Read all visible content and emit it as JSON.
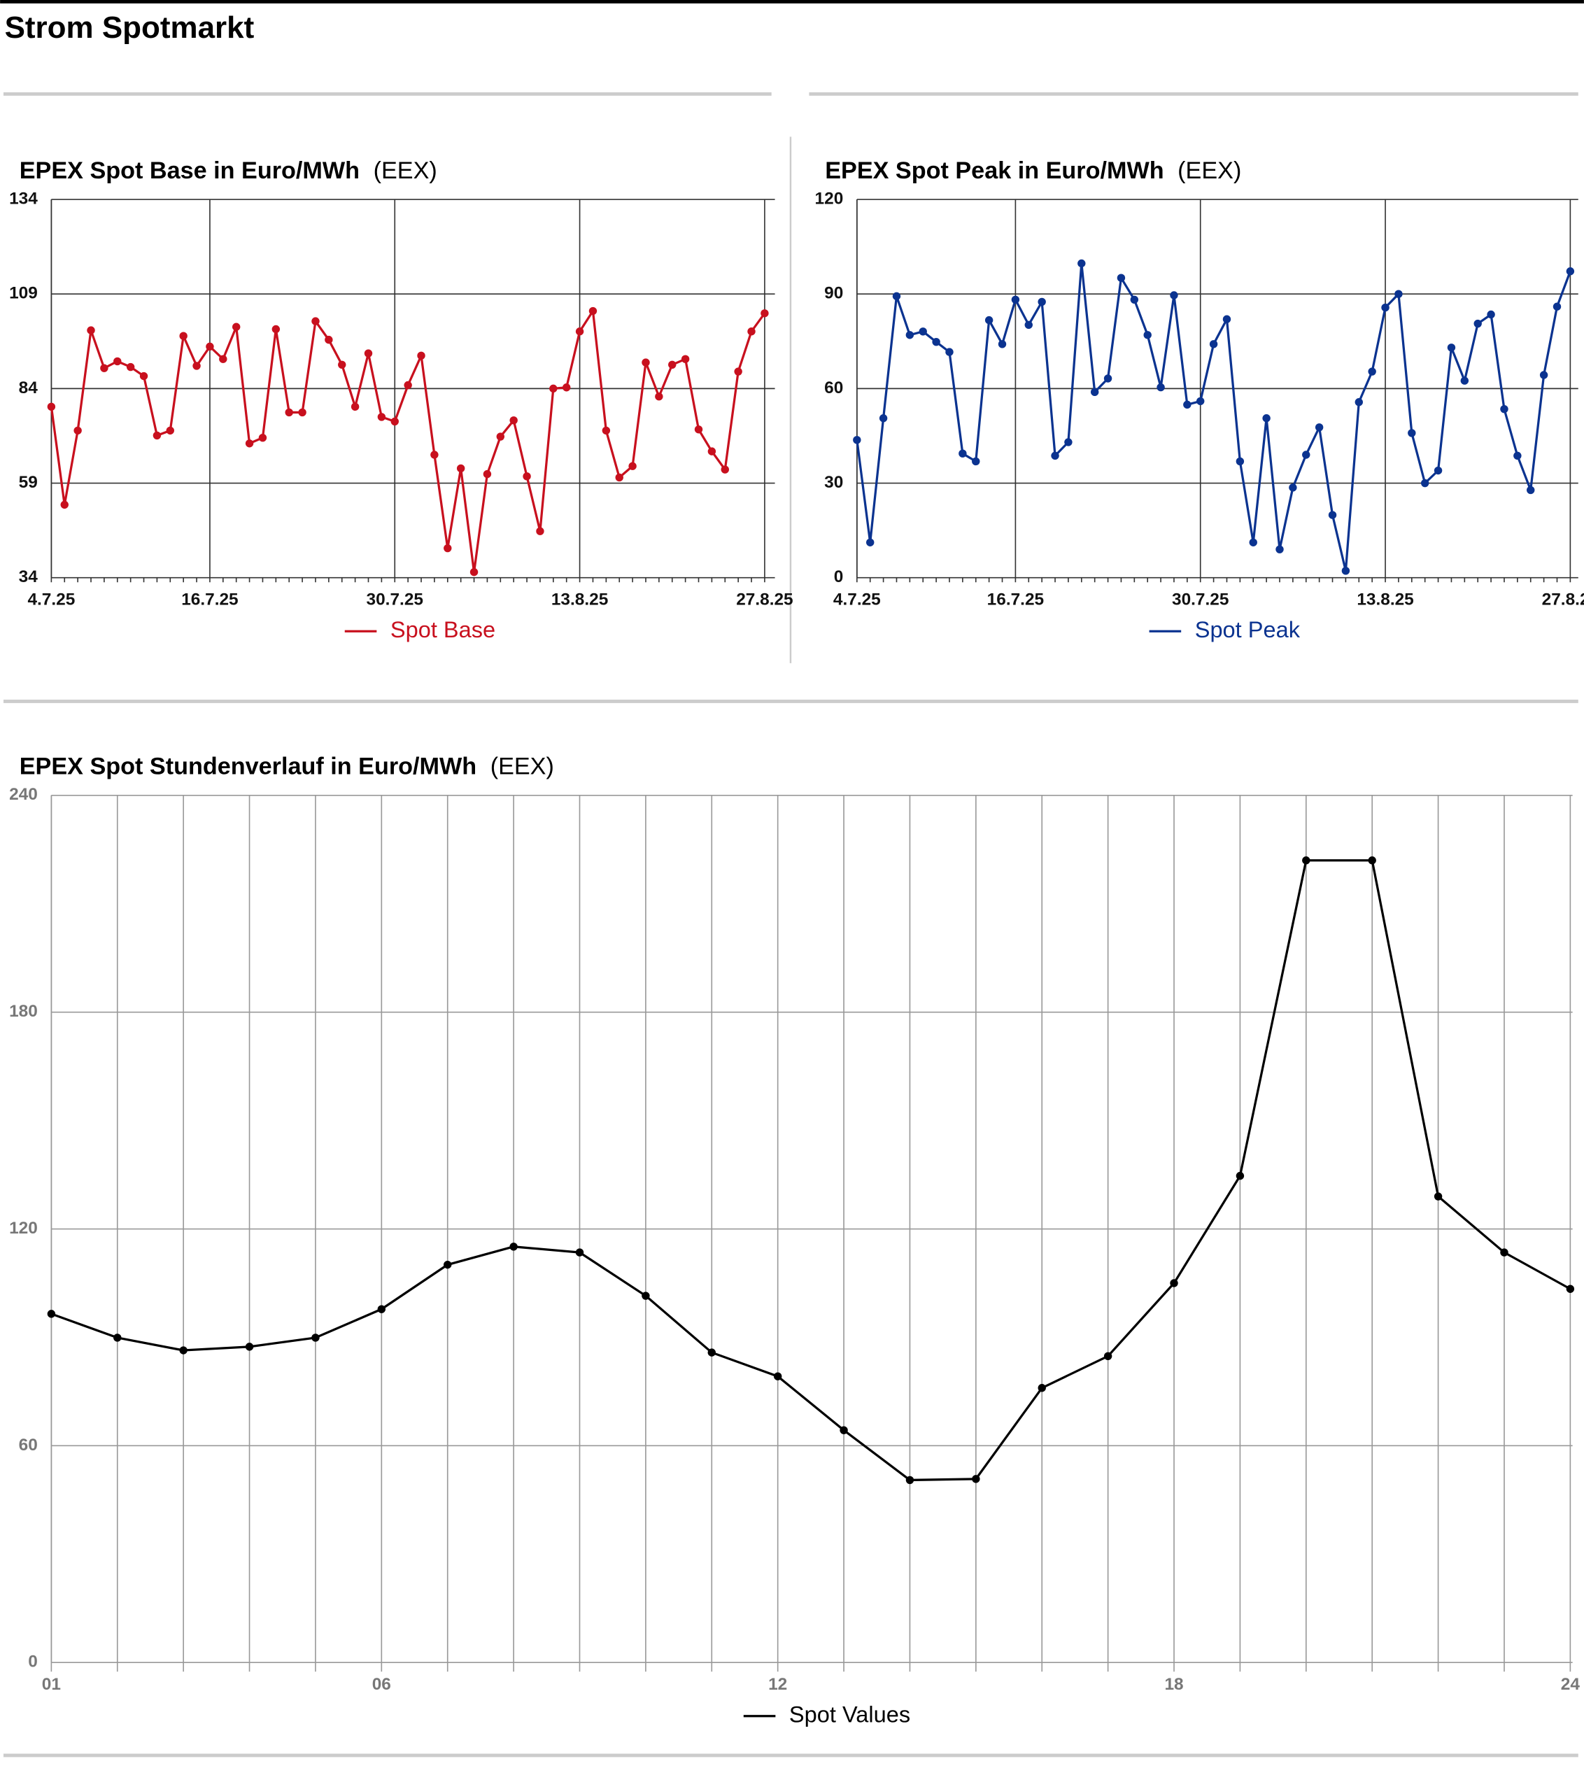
{
  "page_title": "Strom Spotmarkt",
  "chart_data": [
    {
      "type": "line",
      "title": "EPEX Spot Base in Euro/MWh",
      "source": "(EEX)",
      "categories": [
        "4.7.25",
        null,
        null,
        null,
        null,
        null,
        null,
        null,
        null,
        null,
        null,
        null,
        "16.7.25",
        null,
        null,
        null,
        null,
        null,
        null,
        null,
        null,
        null,
        null,
        null,
        null,
        null,
        "30.7.25",
        null,
        null,
        null,
        null,
        null,
        null,
        null,
        null,
        null,
        null,
        null,
        null,
        null,
        "13.8.25",
        null,
        null,
        null,
        null,
        null,
        null,
        null,
        null,
        null,
        null,
        null,
        null,
        null,
        "27.8.25"
      ],
      "series": [
        {
          "name": "Spot Base",
          "color": "#c8101e",
          "values": [
            79.2,
            53.3,
            72.9,
            99.4,
            89.4,
            91.2,
            89.7,
            87.3,
            71.6,
            72.9,
            97.9,
            90.0,
            95.1,
            91.8,
            100.3,
            69.5,
            71.0,
            99.7,
            77.7,
            77.7,
            101.8,
            96.9,
            90.3,
            79.2,
            93.3,
            76.5,
            75.3,
            84.9,
            92.7,
            66.5,
            41.8,
            62.9,
            35.5,
            61.4,
            71.3,
            75.6,
            60.8,
            46.3,
            84.0,
            84.3,
            99.1,
            104.5,
            72.9,
            60.5,
            63.5,
            90.9,
            81.9,
            90.3,
            91.8,
            73.2,
            67.4,
            62.6,
            88.5,
            99.1,
            103.9
          ]
        }
      ],
      "ylim": [
        34,
        134
      ],
      "yticks": [
        34,
        59,
        84,
        109,
        134
      ],
      "grid": true,
      "legend": "bottom"
    },
    {
      "type": "line",
      "title": "EPEX Spot Peak in Euro/MWh",
      "source": "(EEX)",
      "categories": [
        "4.7.25",
        null,
        null,
        null,
        null,
        null,
        null,
        null,
        null,
        null,
        null,
        null,
        "16.7.25",
        null,
        null,
        null,
        null,
        null,
        null,
        null,
        null,
        null,
        null,
        null,
        null,
        null,
        "30.7.25",
        null,
        null,
        null,
        null,
        null,
        null,
        null,
        null,
        null,
        null,
        null,
        null,
        null,
        "13.8.25",
        null,
        null,
        null,
        null,
        null,
        null,
        null,
        null,
        null,
        null,
        null,
        null,
        null,
        "27.8.25"
      ],
      "series": [
        {
          "name": "Spot Peak",
          "color": "#0b3390",
          "values": [
            43.7,
            11.2,
            50.6,
            89.3,
            77.0,
            78.1,
            74.8,
            71.6,
            39.4,
            36.9,
            81.7,
            74.1,
            88.2,
            80.2,
            87.5,
            38.7,
            43.0,
            99.7,
            58.9,
            63.2,
            95.1,
            88.2,
            77.0,
            60.4,
            89.6,
            54.9,
            56.0,
            74.1,
            82.0,
            36.9,
            11.2,
            50.6,
            9.0,
            28.6,
            39.0,
            47.7,
            19.9,
            2.2,
            55.7,
            65.4,
            85.7,
            90.0,
            45.9,
            30.0,
            34.0,
            73.0,
            62.5,
            80.6,
            83.5,
            53.5,
            38.7,
            27.8,
            64.3,
            86.0,
            97.2
          ]
        }
      ],
      "ylim": [
        0,
        120
      ],
      "yticks": [
        0,
        30,
        60,
        90,
        120
      ],
      "grid": true,
      "legend": "bottom"
    },
    {
      "type": "line",
      "title": "EPEX Spot Stundenverlauf in Euro/MWh",
      "source": "(EEX)",
      "categories": [
        "01",
        null,
        null,
        null,
        null,
        "06",
        null,
        null,
        null,
        null,
        null,
        "12",
        null,
        null,
        null,
        null,
        null,
        "18",
        null,
        null,
        null,
        null,
        null,
        "24"
      ],
      "series": [
        {
          "name": "Spot Values",
          "color": "#000000",
          "values": [
            96.5,
            89.9,
            86.4,
            87.4,
            89.9,
            97.8,
            110.1,
            115.1,
            113.5,
            101.5,
            85.8,
            79.2,
            64.3,
            50.5,
            50.8,
            76.0,
            84.8,
            105.0,
            134.7,
            222.0,
            222.0,
            129.0,
            113.5,
            103.4
          ]
        }
      ],
      "ylim": [
        0,
        240
      ],
      "yticks": [
        0,
        60,
        120,
        180,
        240
      ],
      "grid": true,
      "legend": "bottom"
    }
  ]
}
